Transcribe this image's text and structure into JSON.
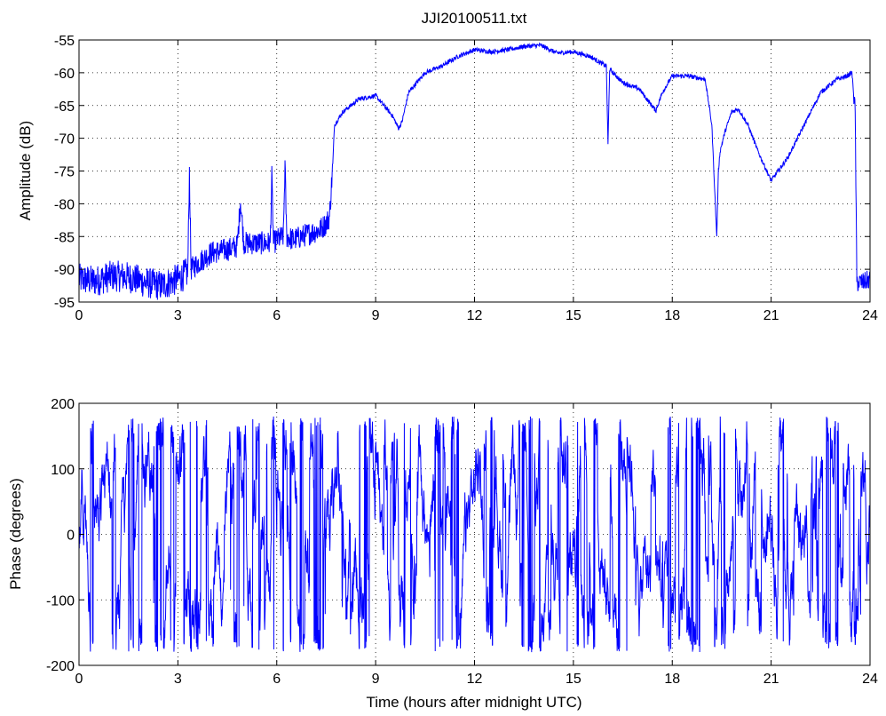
{
  "figure": {
    "title": "JJI20100511.txt",
    "xlabel": "Time (hours after midnight UTC)"
  },
  "chart_data": [
    {
      "type": "line",
      "title": "JJI20100511.txt",
      "xlabel": "",
      "ylabel": "Amplitude (dB)",
      "xlim": [
        0,
        24
      ],
      "ylim": [
        -95,
        -55
      ],
      "xticks": [
        0,
        3,
        6,
        9,
        12,
        15,
        18,
        21,
        24
      ],
      "yticks": [
        -95,
        -90,
        -85,
        -80,
        -75,
        -70,
        -65,
        -60,
        -55
      ],
      "grid": "dotted",
      "line_color": "#0000ff",
      "series": [
        {
          "x": [
            0,
            0.5,
            1,
            1.5,
            2,
            2.5,
            3,
            3.3,
            3.35,
            3.4,
            3.5,
            4,
            4.5,
            4.8,
            4.9,
            5,
            5.5,
            5.8,
            5.85,
            5.9,
            6,
            6.2,
            6.25,
            6.3,
            6.5,
            7,
            7.3,
            7.5,
            7.6,
            7.7,
            7.75,
            8,
            8.5,
            9,
            9.5,
            9.7,
            9.8,
            10,
            10.5,
            11,
            11.5,
            12,
            12.5,
            13,
            13.5,
            14,
            14.5,
            15,
            15.5,
            16,
            16.05,
            16.1,
            16.5,
            17,
            17.3,
            17.5,
            17.7,
            18,
            18.5,
            19,
            19.2,
            19.35,
            19.4,
            19.45,
            19.6,
            19.8,
            20,
            20.3,
            20.6,
            21,
            21.5,
            22,
            22.5,
            23,
            23.3,
            23.45,
            23.55,
            23.6,
            23.8,
            24
          ],
          "y": [
            -91.5,
            -91.8,
            -91,
            -91.2,
            -92,
            -92.5,
            -91.5,
            -90.5,
            -75,
            -90,
            -89.5,
            -87.5,
            -87,
            -86.5,
            -79.5,
            -86,
            -86,
            -86,
            -76,
            -86,
            -85.5,
            -85,
            -74,
            -85,
            -85.5,
            -84.5,
            -84,
            -83,
            -82,
            -74,
            -68,
            -66,
            -64,
            -63.5,
            -66.5,
            -68.5,
            -67.5,
            -63,
            -60,
            -59,
            -57.5,
            -56.5,
            -56.8,
            -56.5,
            -56,
            -55.8,
            -57,
            -56.8,
            -57.5,
            -59,
            -71,
            -59.5,
            -61.5,
            -62.5,
            -64.5,
            -65.8,
            -63,
            -60.5,
            -60.5,
            -61,
            -68,
            -85,
            -75,
            -72,
            -69,
            -66,
            -65.5,
            -68,
            -72,
            -76.5,
            -73,
            -68,
            -63,
            -61,
            -60.5,
            -60,
            -66,
            -92,
            -92,
            -91.5
          ]
        }
      ]
    },
    {
      "type": "line",
      "title": "",
      "xlabel": "Time (hours after midnight UTC)",
      "ylabel": "Phase (degrees)",
      "xlim": [
        0,
        24
      ],
      "ylim": [
        -200,
        200
      ],
      "xticks": [
        0,
        3,
        6,
        9,
        12,
        15,
        18,
        21,
        24
      ],
      "yticks": [
        -200,
        -100,
        0,
        100,
        200
      ],
      "grid": "dotted",
      "line_color": "#0000ff",
      "series": [
        {
          "x": [
            0,
            24
          ],
          "y_range": [
            -180,
            180
          ],
          "pattern": "wrapped phase, rapid oscillation between -180 and 180"
        }
      ]
    }
  ]
}
